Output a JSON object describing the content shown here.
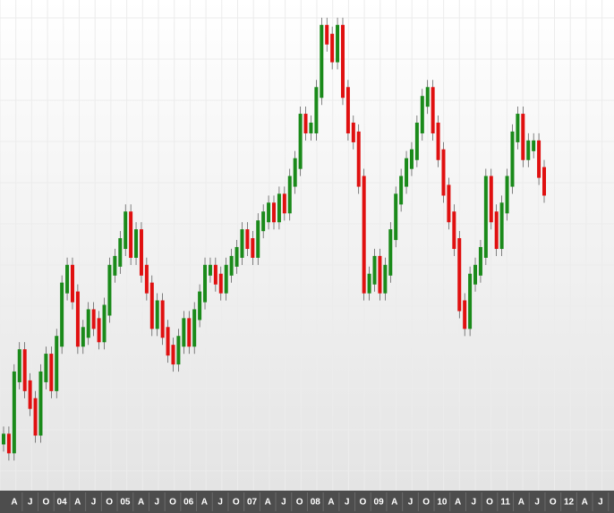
{
  "chart_data": {
    "type": "price-bars",
    "x_tick_labels": [
      "A",
      "J",
      "O",
      "04",
      "A",
      "J",
      "O",
      "05",
      "A",
      "J",
      "O",
      "06",
      "A",
      "J",
      "O",
      "07",
      "A",
      "J",
      "O",
      "08",
      "A",
      "J",
      "O",
      "09",
      "A",
      "J",
      "O",
      "10",
      "A",
      "J",
      "O",
      "11",
      "A",
      "J",
      "O",
      "12",
      "A",
      "J"
    ],
    "values": [
      58,
      48,
      128,
      153,
      118,
      98,
      68,
      128,
      148,
      118,
      168,
      228,
      248,
      218,
      168,
      178,
      198,
      188,
      173,
      203,
      248,
      258,
      278,
      308,
      268,
      288,
      248,
      228,
      188,
      208,
      178,
      158,
      148,
      168,
      188,
      168,
      198,
      218,
      248,
      248,
      238,
      228,
      248,
      258,
      268,
      288,
      278,
      268,
      298,
      308,
      318,
      308,
      328,
      318,
      348,
      368,
      418,
      408,
      408,
      448,
      518,
      508,
      488,
      518,
      448,
      408,
      398,
      348,
      228,
      238,
      258,
      228,
      248,
      288,
      328,
      348,
      368,
      378,
      408,
      438,
      448,
      408,
      378,
      338,
      308,
      278,
      208,
      188,
      238,
      248,
      268,
      348,
      308,
      278,
      318,
      348,
      398,
      418,
      378,
      388,
      388,
      358,
      338
    ],
    "ylim": [
      0,
      548
    ],
    "up_color": "#1a8a1a",
    "down_color": "#e01010",
    "grid": true
  }
}
